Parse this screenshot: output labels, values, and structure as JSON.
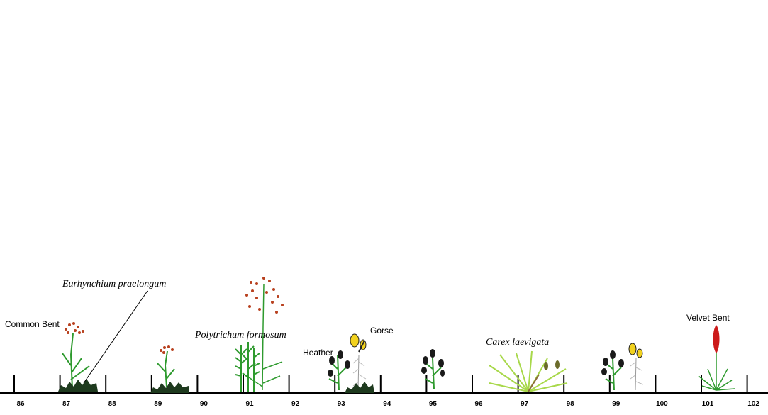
{
  "transect": {
    "scale_labels": [
      "86",
      "87",
      "88",
      "89",
      "90",
      "91",
      "92",
      "93",
      "94",
      "95",
      "96",
      "97",
      "98",
      "99",
      "100",
      "101",
      "102"
    ]
  },
  "species": {
    "common_bent": "Common Bent",
    "eurhynchium": "Eurhynchium praelongum",
    "polytrichum": "Polytrichum formosum",
    "heather": "Heather",
    "gorse": "Gorse",
    "carex": "Carex laevigata",
    "velvet_bent": "Velvet Bent"
  },
  "colors": {
    "stem": "#2e9a2e",
    "moss": "#1e3a1e",
    "heather": "#1a1a1a",
    "gorse_flower": "#f2d21e",
    "grass_seed": "#b8401e",
    "velvet_flower": "#cc1a1a",
    "sedge": "#a8d84a"
  }
}
